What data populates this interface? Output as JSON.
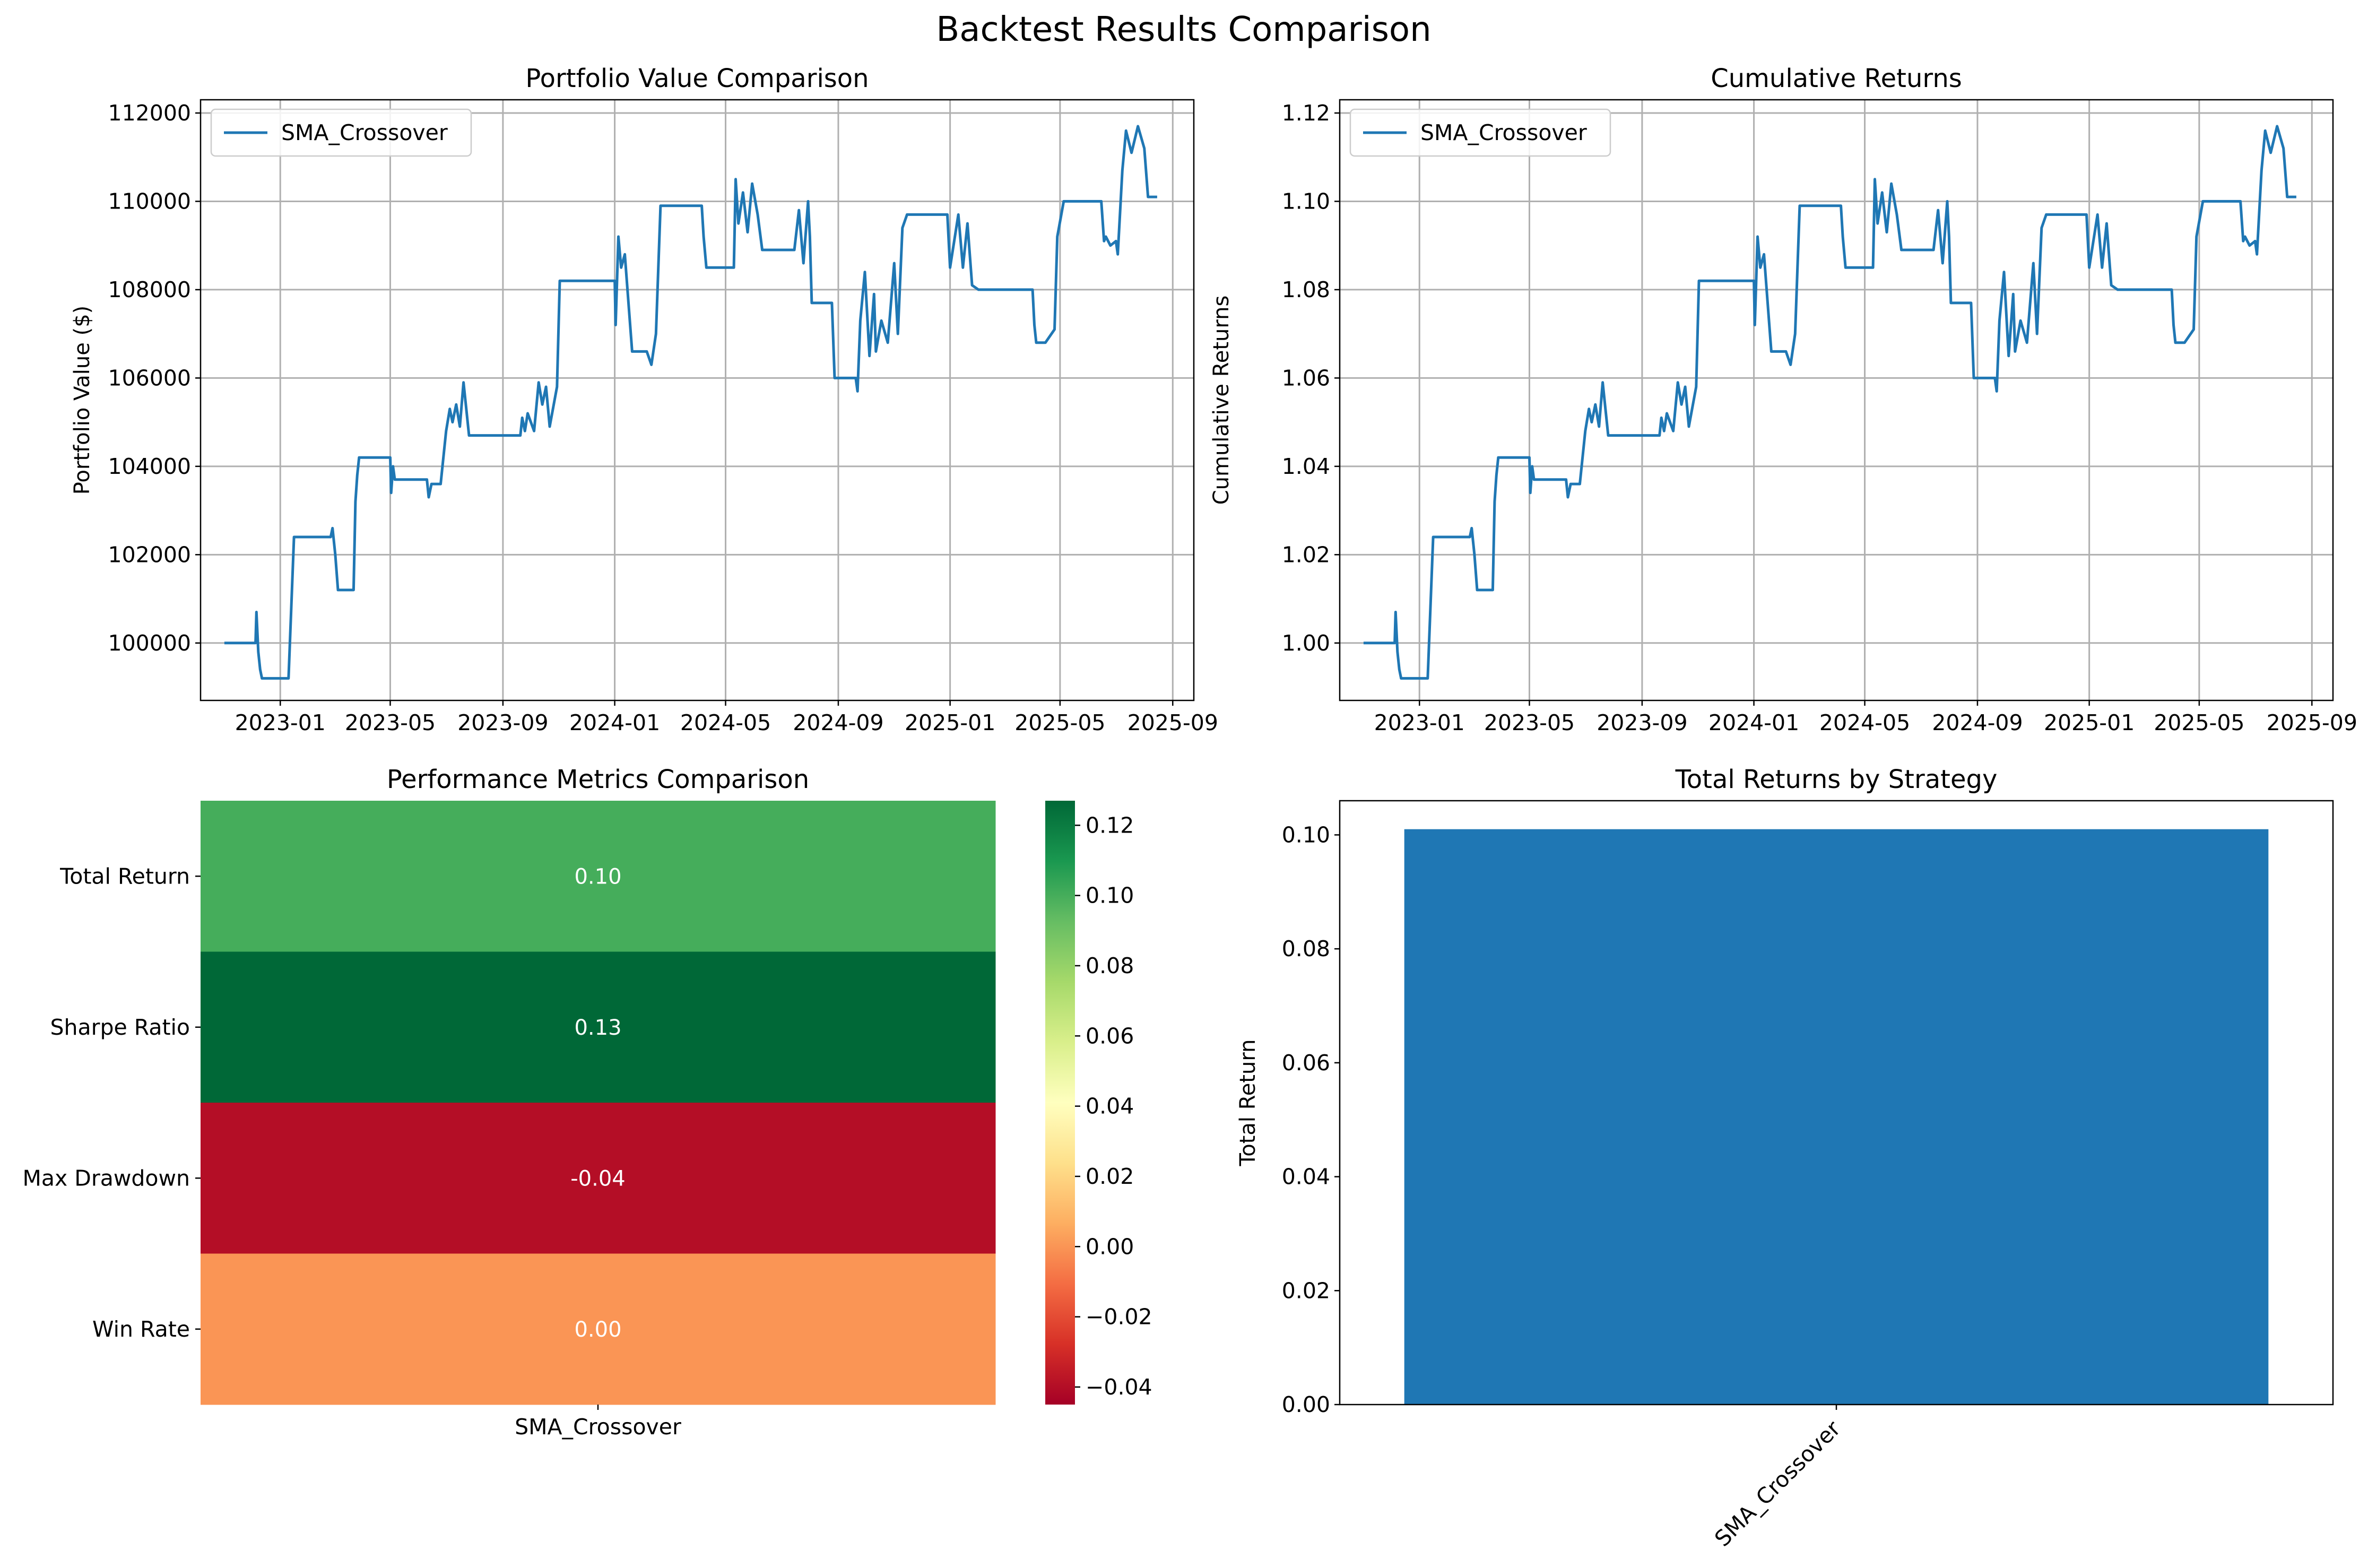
{
  "suptitle": "Backtest Results Comparison",
  "chart_data": [
    {
      "type": "line",
      "title": "Portfolio Value Comparison",
      "xlabel": "",
      "ylabel": "Portfolio Value ($)",
      "x_type": "date",
      "xlim": [
        "2022-10-06",
        "2025-09-24"
      ],
      "ylim": [
        98700,
        112300
      ],
      "xticks": [
        "2023-01",
        "2023-05",
        "2023-09",
        "2024-01",
        "2024-05",
        "2024-09",
        "2025-01",
        "2025-05",
        "2025-09"
      ],
      "yticks": [
        100000,
        102000,
        104000,
        106000,
        108000,
        110000,
        112000
      ],
      "grid": true,
      "legend": "top-left",
      "series": [
        {
          "name": "SMA_Crossover",
          "color": "#1f77b4",
          "x": [
            "2022-11-01",
            "2022-12-05",
            "2022-12-06",
            "2022-12-08",
            "2022-12-10",
            "2022-12-12",
            "2022-12-14",
            "2022-12-20",
            "2023-01-10",
            "2023-01-16",
            "2023-01-20",
            "2023-02-25",
            "2023-02-27",
            "2023-03-02",
            "2023-03-05",
            "2023-03-22",
            "2023-03-24",
            "2023-03-26",
            "2023-03-28",
            "2023-05-01",
            "2023-05-02",
            "2023-05-04",
            "2023-05-06",
            "2023-06-10",
            "2023-06-12",
            "2023-06-15",
            "2023-06-25",
            "2023-07-01",
            "2023-07-05",
            "2023-07-08",
            "2023-07-12",
            "2023-07-16",
            "2023-07-20",
            "2023-07-26",
            "2023-09-20",
            "2023-09-22",
            "2023-09-25",
            "2023-09-28",
            "2023-10-05",
            "2023-10-10",
            "2023-10-14",
            "2023-10-18",
            "2023-10-22",
            "2023-10-30",
            "2023-11-02",
            "2024-01-01",
            "2024-01-02",
            "2024-01-05",
            "2024-01-08",
            "2024-01-12",
            "2024-01-20",
            "2024-02-05",
            "2024-02-10",
            "2024-02-15",
            "2024-02-20",
            "2024-04-05",
            "2024-04-07",
            "2024-04-10",
            "2024-05-10",
            "2024-05-12",
            "2024-05-15",
            "2024-05-20",
            "2024-05-25",
            "2024-05-30",
            "2024-06-05",
            "2024-06-10",
            "2024-06-15",
            "2024-07-15",
            "2024-07-20",
            "2024-07-25",
            "2024-07-30",
            "2024-08-01",
            "2024-08-03",
            "2024-08-25",
            "2024-08-28",
            "2024-09-20",
            "2024-09-22",
            "2024-09-25",
            "2024-09-30",
            "2024-10-05",
            "2024-10-10",
            "2024-10-12",
            "2024-10-18",
            "2024-10-25",
            "2024-11-01",
            "2024-11-05",
            "2024-11-10",
            "2024-11-15",
            "2024-12-29",
            "2025-01-01",
            "2025-01-10",
            "2025-01-15",
            "2025-01-20",
            "2025-01-25",
            "2025-02-01",
            "2025-04-01",
            "2025-04-03",
            "2025-04-05",
            "2025-04-15",
            "2025-04-25",
            "2025-04-28",
            "2025-05-05",
            "2025-05-15",
            "2025-06-15",
            "2025-06-18",
            "2025-06-20",
            "2025-06-25",
            "2025-07-01",
            "2025-07-03",
            "2025-07-08",
            "2025-07-12",
            "2025-07-18",
            "2025-07-25",
            "2025-08-01",
            "2025-08-05",
            "2025-08-15"
          ],
          "values": [
            100000,
            100000,
            100700,
            99800,
            99400,
            99200,
            99200,
            99200,
            99200,
            102400,
            102400,
            102400,
            102600,
            102000,
            101200,
            101200,
            103200,
            103800,
            104200,
            104200,
            103400,
            104000,
            103700,
            103700,
            103300,
            103600,
            103600,
            104800,
            105300,
            105000,
            105400,
            104900,
            105900,
            104700,
            104700,
            105100,
            104800,
            105200,
            104800,
            105900,
            105400,
            105800,
            104900,
            105800,
            108200,
            108200,
            107200,
            109200,
            108500,
            108800,
            106600,
            106600,
            106300,
            107000,
            109900,
            109900,
            109200,
            108500,
            108500,
            110500,
            109500,
            110200,
            109300,
            110400,
            109700,
            108900,
            108900,
            108900,
            109800,
            108600,
            110000,
            109200,
            107700,
            107700,
            106000,
            106000,
            105700,
            107300,
            108400,
            106500,
            107900,
            106600,
            107300,
            106800,
            108600,
            107000,
            109400,
            109700,
            109700,
            108500,
            109700,
            108500,
            109500,
            108100,
            108000,
            108000,
            107200,
            106800,
            106800,
            107100,
            109200,
            110000,
            110000,
            110000,
            109100,
            109200,
            109000,
            109100,
            108800,
            110700,
            111600,
            111100,
            111700,
            111200,
            110100,
            110100
          ]
        }
      ]
    },
    {
      "type": "line",
      "title": "Cumulative Returns",
      "xlabel": "",
      "ylabel": "Cumulative Returns",
      "x_type": "date",
      "xlim": [
        "2022-10-06",
        "2025-09-24"
      ],
      "ylim": [
        0.987,
        1.123
      ],
      "xticks": [
        "2023-01",
        "2023-05",
        "2023-09",
        "2024-01",
        "2024-05",
        "2024-09",
        "2025-01",
        "2025-05",
        "2025-09"
      ],
      "yticks": [
        "1.00",
        "1.02",
        "1.04",
        "1.06",
        "1.08",
        "1.10",
        "1.12"
      ],
      "grid": true,
      "legend": "top-left",
      "series": [
        {
          "name": "SMA_Crossover",
          "color": "#1f77b4",
          "x": [
            "2022-11-01",
            "2022-12-05",
            "2022-12-06",
            "2022-12-08",
            "2022-12-10",
            "2022-12-12",
            "2022-12-14",
            "2022-12-20",
            "2023-01-10",
            "2023-01-16",
            "2023-01-20",
            "2023-02-25",
            "2023-02-27",
            "2023-03-02",
            "2023-03-05",
            "2023-03-22",
            "2023-03-24",
            "2023-03-26",
            "2023-03-28",
            "2023-05-01",
            "2023-05-02",
            "2023-05-04",
            "2023-05-06",
            "2023-06-10",
            "2023-06-12",
            "2023-06-15",
            "2023-06-25",
            "2023-07-01",
            "2023-07-05",
            "2023-07-08",
            "2023-07-12",
            "2023-07-16",
            "2023-07-20",
            "2023-07-26",
            "2023-09-20",
            "2023-09-22",
            "2023-09-25",
            "2023-09-28",
            "2023-10-05",
            "2023-10-10",
            "2023-10-14",
            "2023-10-18",
            "2023-10-22",
            "2023-10-30",
            "2023-11-02",
            "2024-01-01",
            "2024-01-02",
            "2024-01-05",
            "2024-01-08",
            "2024-01-12",
            "2024-01-20",
            "2024-02-05",
            "2024-02-10",
            "2024-02-15",
            "2024-02-20",
            "2024-04-05",
            "2024-04-07",
            "2024-04-10",
            "2024-05-10",
            "2024-05-12",
            "2024-05-15",
            "2024-05-20",
            "2024-05-25",
            "2024-05-30",
            "2024-06-05",
            "2024-06-10",
            "2024-06-15",
            "2024-07-15",
            "2024-07-20",
            "2024-07-25",
            "2024-07-30",
            "2024-08-01",
            "2024-08-03",
            "2024-08-25",
            "2024-08-28",
            "2024-09-20",
            "2024-09-22",
            "2024-09-25",
            "2024-09-30",
            "2024-10-05",
            "2024-10-10",
            "2024-10-12",
            "2024-10-18",
            "2024-10-25",
            "2024-11-01",
            "2024-11-05",
            "2024-11-10",
            "2024-11-15",
            "2024-12-29",
            "2025-01-01",
            "2025-01-10",
            "2025-01-15",
            "2025-01-20",
            "2025-01-25",
            "2025-02-01",
            "2025-04-01",
            "2025-04-03",
            "2025-04-05",
            "2025-04-15",
            "2025-04-25",
            "2025-04-28",
            "2025-05-05",
            "2025-05-15",
            "2025-06-15",
            "2025-06-18",
            "2025-06-20",
            "2025-06-25",
            "2025-07-01",
            "2025-07-03",
            "2025-07-08",
            "2025-07-12",
            "2025-07-18",
            "2025-07-25",
            "2025-08-01",
            "2025-08-05",
            "2025-08-15"
          ],
          "values": [
            1.0,
            1.0,
            1.007,
            0.998,
            0.994,
            0.992,
            0.992,
            0.992,
            0.992,
            1.024,
            1.024,
            1.024,
            1.026,
            1.02,
            1.012,
            1.012,
            1.032,
            1.038,
            1.042,
            1.042,
            1.034,
            1.04,
            1.037,
            1.037,
            1.033,
            1.036,
            1.036,
            1.048,
            1.053,
            1.05,
            1.054,
            1.049,
            1.059,
            1.047,
            1.047,
            1.051,
            1.048,
            1.052,
            1.048,
            1.059,
            1.054,
            1.058,
            1.049,
            1.058,
            1.082,
            1.082,
            1.072,
            1.092,
            1.085,
            1.088,
            1.066,
            1.066,
            1.063,
            1.07,
            1.099,
            1.099,
            1.092,
            1.085,
            1.085,
            1.105,
            1.095,
            1.102,
            1.093,
            1.104,
            1.097,
            1.089,
            1.089,
            1.089,
            1.098,
            1.086,
            1.1,
            1.092,
            1.077,
            1.077,
            1.06,
            1.06,
            1.057,
            1.073,
            1.084,
            1.065,
            1.079,
            1.066,
            1.073,
            1.068,
            1.086,
            1.07,
            1.094,
            1.097,
            1.097,
            1.085,
            1.097,
            1.085,
            1.095,
            1.081,
            1.08,
            1.08,
            1.072,
            1.068,
            1.068,
            1.071,
            1.092,
            1.1,
            1.1,
            1.1,
            1.091,
            1.092,
            1.09,
            1.091,
            1.088,
            1.107,
            1.116,
            1.111,
            1.117,
            1.112,
            1.101,
            1.101
          ]
        }
      ]
    },
    {
      "type": "heatmap",
      "title": "Performance Metrics Comparison",
      "rows": [
        "Total Return",
        "Sharpe Ratio",
        "Max Drawdown",
        "Win Rate"
      ],
      "columns": [
        "SMA_Crossover"
      ],
      "values": [
        [
          0.1
        ],
        [
          0.13
        ],
        [
          -0.04
        ],
        [
          0.0
        ]
      ],
      "cell_labels": [
        [
          "0.10"
        ],
        [
          "0.13"
        ],
        [
          "-0.04"
        ],
        [
          "0.00"
        ]
      ],
      "colormap": "RdYlGn",
      "vmin": -0.045,
      "vmax": 0.127,
      "colorbar_ticks": [
        0.12,
        0.1,
        0.08,
        0.06,
        0.04,
        0.02,
        0.0,
        -0.02,
        -0.04
      ],
      "colorbar_labels": [
        "0.12",
        "0.10",
        "0.08",
        "0.06",
        "0.04",
        "0.02",
        "0.00",
        "−0.02",
        "−0.04"
      ]
    },
    {
      "type": "bar",
      "title": "Total Returns by Strategy",
      "categories": [
        "SMA_Crossover"
      ],
      "values": [
        0.101
      ],
      "xlabel": "",
      "ylabel": "Total Return",
      "ylim": [
        0,
        0.106
      ],
      "yticks": [
        "0.00",
        "0.02",
        "0.04",
        "0.06",
        "0.08",
        "0.10"
      ],
      "color": "#1f77b4",
      "grid": false,
      "xtick_rotation": 45
    }
  ]
}
